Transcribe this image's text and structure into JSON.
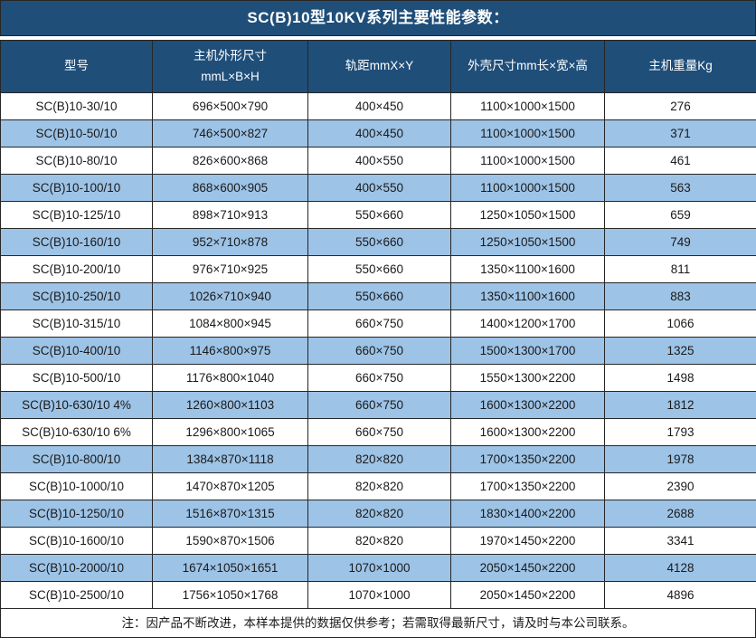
{
  "title": "SC(B)10型10KV系列主要性能参数：",
  "table": {
    "columns": [
      "型号",
      "主机外形尺寸\nmmL×B×H",
      "轨距mmX×Y",
      "外壳尺寸mm长×宽×高",
      "主机重量Kg"
    ],
    "rows": [
      [
        "SC(B)10-30/10",
        "696×500×790",
        "400×450",
        "1100×1000×1500",
        "276"
      ],
      [
        "SC(B)10-50/10",
        "746×500×827",
        "400×450",
        "1100×1000×1500",
        "371"
      ],
      [
        "SC(B)10-80/10",
        "826×600×868",
        "400×550",
        "1100×1000×1500",
        "461"
      ],
      [
        "SC(B)10-100/10",
        "868×600×905",
        "400×550",
        "1100×1000×1500",
        "563"
      ],
      [
        "SC(B)10-125/10",
        "898×710×913",
        "550×660",
        "1250×1050×1500",
        "659"
      ],
      [
        "SC(B)10-160/10",
        "952×710×878",
        "550×660",
        "1250×1050×1500",
        "749"
      ],
      [
        "SC(B)10-200/10",
        "976×710×925",
        "550×660",
        "1350×1100×1600",
        "811"
      ],
      [
        "SC(B)10-250/10",
        "1026×710×940",
        "550×660",
        "1350×1100×1600",
        "883"
      ],
      [
        "SC(B)10-315/10",
        "1084×800×945",
        "660×750",
        "1400×1200×1700",
        "1066"
      ],
      [
        "SC(B)10-400/10",
        "1146×800×975",
        "660×750",
        "1500×1300×1700",
        "1325"
      ],
      [
        "SC(B)10-500/10",
        "1176×800×1040",
        "660×750",
        "1550×1300×2200",
        "1498"
      ],
      [
        "SC(B)10-630/10 4%",
        "1260×800×1103",
        "660×750",
        "1600×1300×2200",
        "1812"
      ],
      [
        "SC(B)10-630/10 6%",
        "1296×800×1065",
        "660×750",
        "1600×1300×2200",
        "1793"
      ],
      [
        "SC(B)10-800/10",
        "1384×870×1118",
        "820×820",
        "1700×1350×2200",
        "1978"
      ],
      [
        "SC(B)10-1000/10",
        "1470×870×1205",
        "820×820",
        "1700×1350×2200",
        "2390"
      ],
      [
        "SC(B)10-1250/10",
        "1516×870×1315",
        "820×820",
        "1830×1400×2200",
        "2688"
      ],
      [
        "SC(B)10-1600/10",
        "1590×870×1506",
        "820×820",
        "1970×1450×2200",
        "3341"
      ],
      [
        "SC(B)10-2000/10",
        "1674×1050×1651",
        "1070×1000",
        "2050×1450×2200",
        "4128"
      ],
      [
        "SC(B)10-2500/10",
        "1756×1050×1768",
        "1070×1000",
        "2050×1450×2200",
        "4896"
      ]
    ]
  },
  "footer_note": "注：因产品不断改进，本样本提供的数据仅供参考；若需取得最新尺寸，请及时与本公司联系。",
  "colors": {
    "header_bg": "#1F4E79",
    "row_alt_bg": "#9DC3E6",
    "row_bg": "#FFFFFF",
    "border": "#262626",
    "header_text": "#FFFFFF",
    "body_text": "#1A1A1A"
  }
}
